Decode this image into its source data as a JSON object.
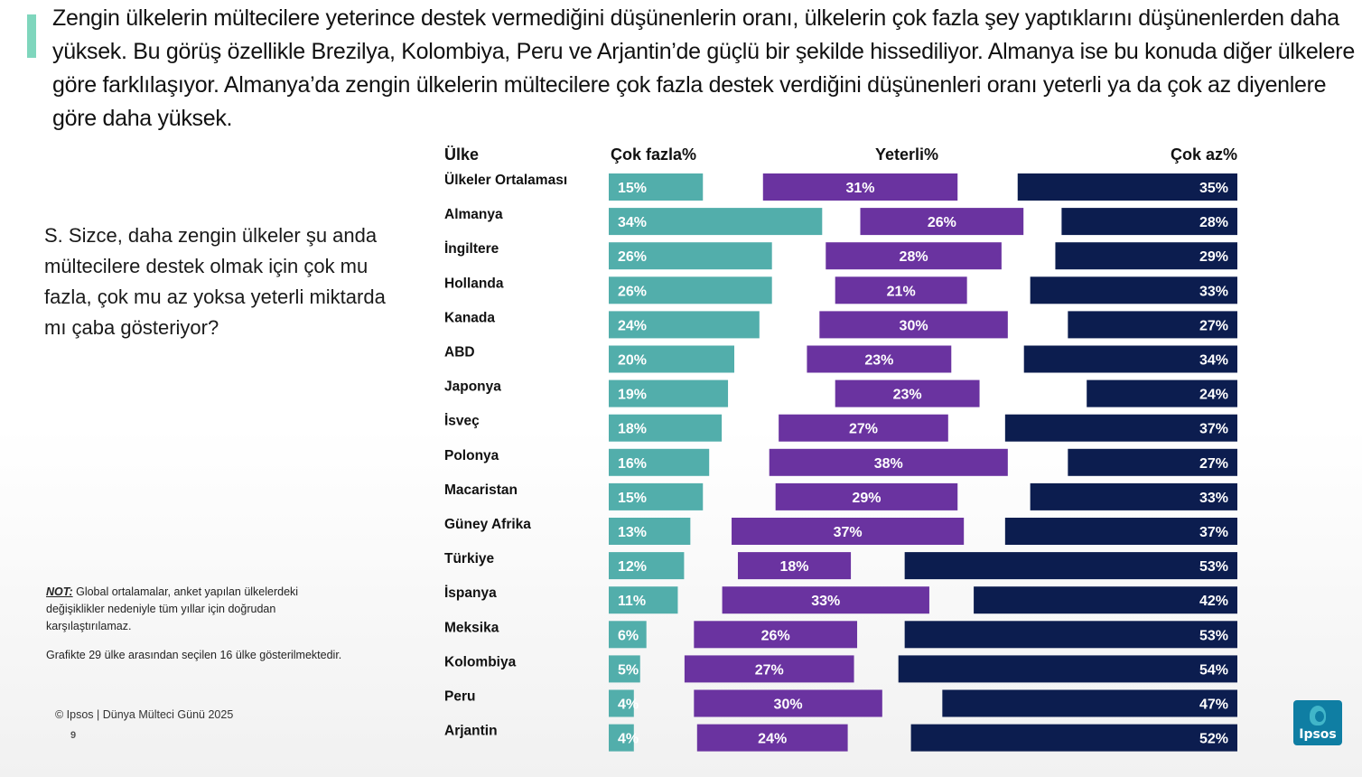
{
  "headline": "Zengin ülkelerin mültecilere yeterince destek vermediğini düşünenlerin oranı, ülkelerin çok fazla şey yaptıklarını düşünenlerden daha yüksek. Bu görüş özellikle Brezilya, Kolombiya, Peru ve Arjantin’de güçlü bir şekilde hissediliyor. Almanya ise bu konuda diğer ülkelere göre farklılaşıyor. Almanya’da zengin ülkelerin mültecilere çok fazla destek verdiğini düşünenleri oranı yeterli ya da çok az diyenlere göre daha yüksek.",
  "question": "S. Sizce, daha zengin ülkeler şu anda mültecilere destek olmak için çok mu fazla, çok mu az yoksa yeterli miktarda mı çaba gösteriyor?",
  "note_label": "NOT:",
  "note_text": " Global ortalamalar, anket yapılan ülkelerdeki değişiklikler nedeniyle tüm yıllar için doğrudan karşılaştırılamaz.",
  "subnote": "Grafikte 29 ülke arasından seçilen 16 ülke gösterilmektedir.",
  "copyright": "© Ipsos | Dünya Mülteci Günü 2025",
  "page_number": "9",
  "logo_text": "Ipsos",
  "colors": {
    "cok_fazla": "#52aeab",
    "yeterli": "#6a33a0",
    "cok_az": "#0c1d4f",
    "accent": "#7fd6bd"
  },
  "chart_data": {
    "type": "bar",
    "headers": {
      "country": "Ülke",
      "series": [
        "Çok fazla%",
        "Yeterli%",
        "Çok az%"
      ]
    },
    "categories": [
      "Ülkeler Ortalaması",
      "Almanya",
      "İngiltere",
      "Hollanda",
      "Kanada",
      "ABD",
      "Japonya",
      "İsveç",
      "Polonya",
      "Macaristan",
      "Güney Afrika",
      "Türkiye",
      "İspanya",
      "Meksika",
      "Kolombiya",
      "Peru",
      "Arjantin"
    ],
    "series": [
      {
        "name": "Çok fazla%",
        "values": [
          15,
          34,
          26,
          26,
          24,
          20,
          19,
          18,
          16,
          15,
          13,
          12,
          11,
          6,
          5,
          4,
          4
        ]
      },
      {
        "name": "Yeterli%",
        "values": [
          31,
          26,
          28,
          21,
          30,
          23,
          23,
          27,
          38,
          29,
          37,
          18,
          33,
          26,
          27,
          30,
          24
        ]
      },
      {
        "name": "Çok az%",
        "values": [
          35,
          28,
          29,
          33,
          27,
          34,
          24,
          37,
          27,
          33,
          37,
          53,
          42,
          53,
          54,
          47,
          52
        ]
      }
    ],
    "value_suffix": "%"
  }
}
